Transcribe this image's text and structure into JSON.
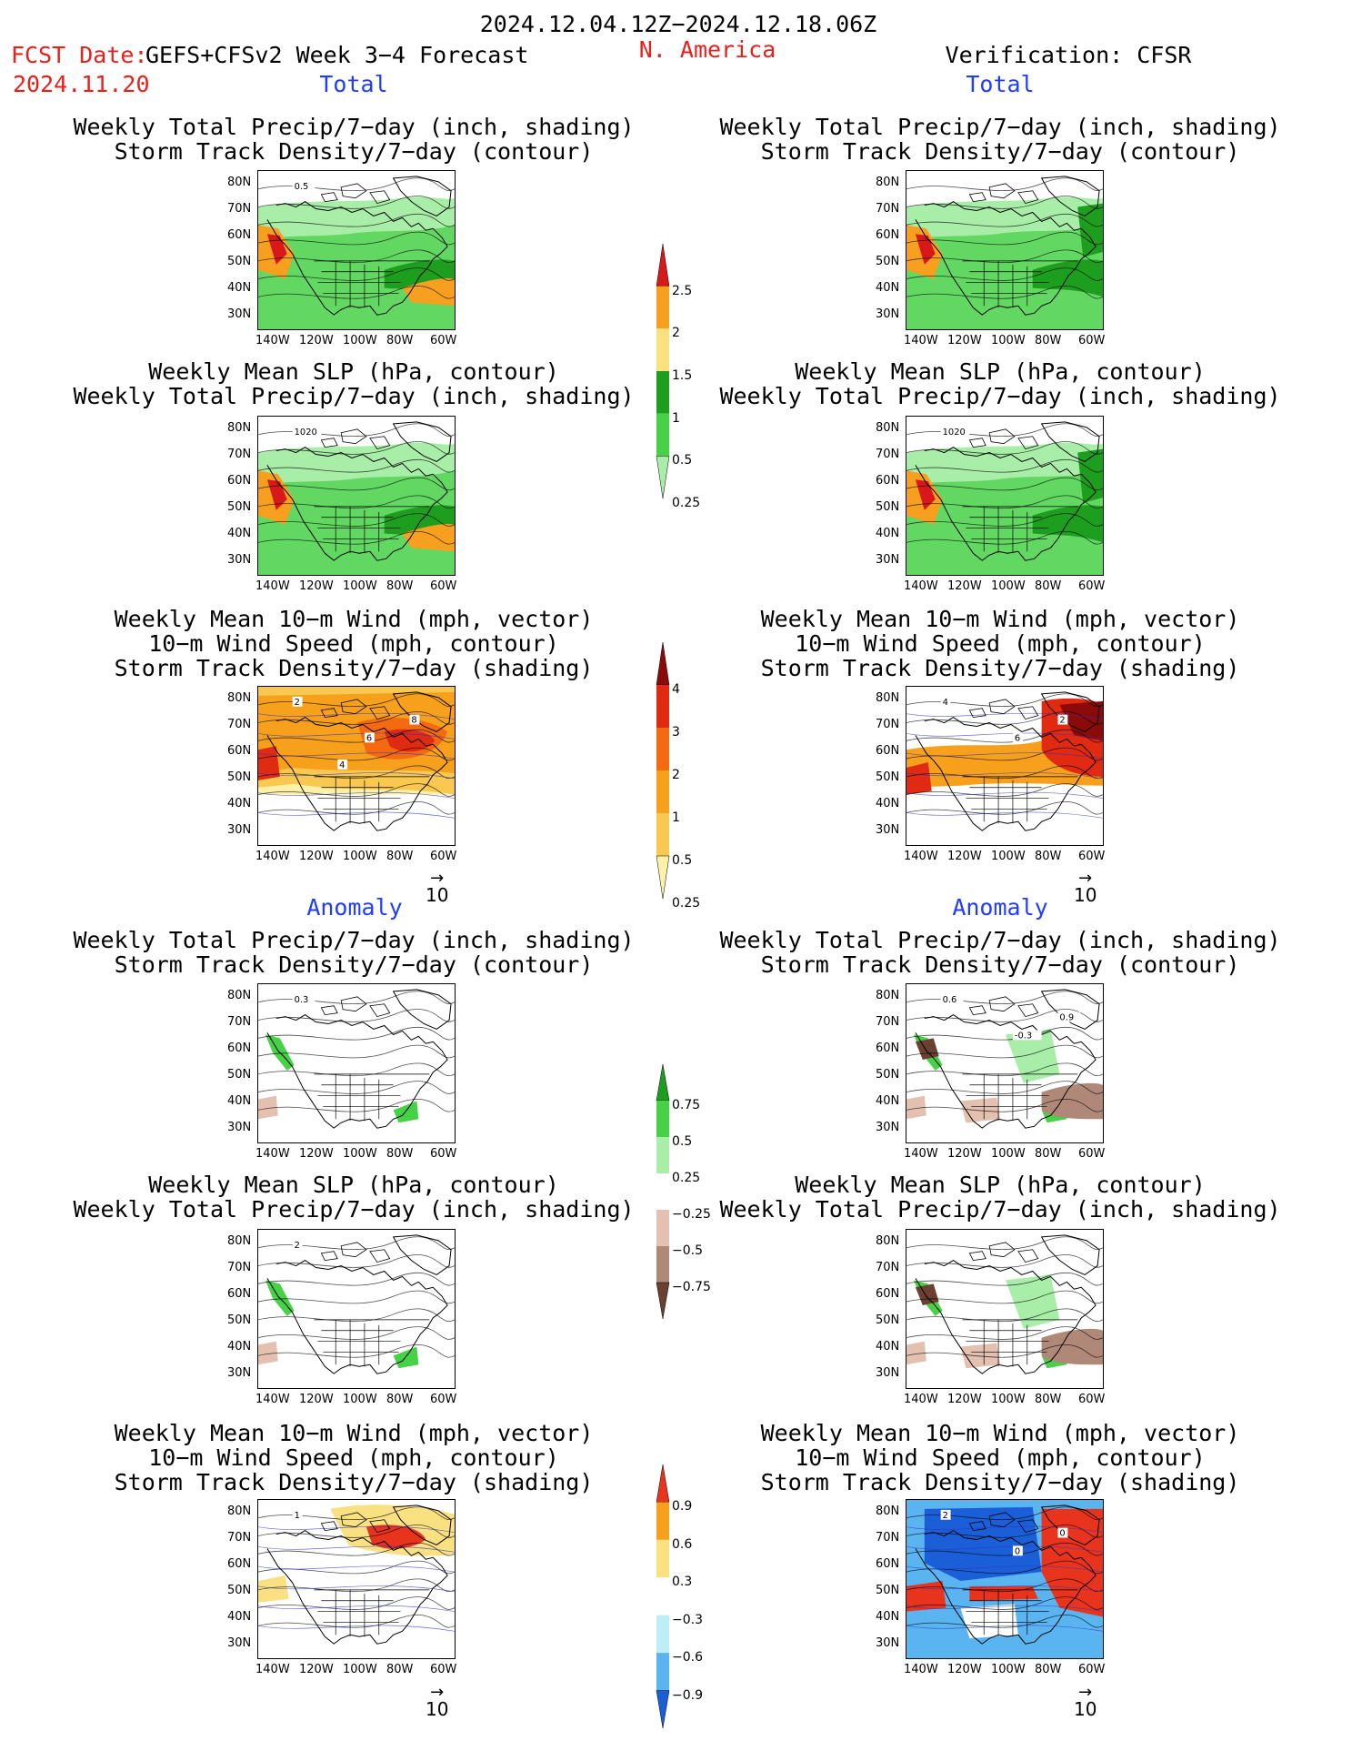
{
  "header": {
    "date_range": "2024.12.04.12Z−2024.12.18.06Z",
    "fcst_label": "FCST Date:",
    "fcst_model": "GEFS+CFSv2 Week 3−4 Forecast",
    "fcst_date": "2024.11.20",
    "region": "N. America",
    "verification": "Verification: CFSR"
  },
  "sections": {
    "total": "Total",
    "anomaly": "Anomaly"
  },
  "panel_titles": {
    "precip_track": [
      "Weekly Total Precip/7−day (inch, shading)",
      "Storm Track Density/7−day (contour)"
    ],
    "slp_precip": [
      "Weekly Mean SLP (hPa, contour)",
      "Weekly Total Precip/7−day (inch, shading)"
    ],
    "wind_track": [
      "Weekly Mean 10−m Wind (mph, vector)",
      "10−m Wind Speed (mph, contour)",
      "Storm Track Density/7−day (shading)"
    ]
  },
  "axes": {
    "lat_ticks": [
      "80N",
      "70N",
      "60N",
      "50N",
      "40N",
      "30N"
    ],
    "lon_ticks": [
      "140W",
      "120W",
      "100W",
      "80W",
      "60W"
    ]
  },
  "vector_ref": "10",
  "panels": [
    {
      "id": "fc-total-precip",
      "type": "precip_total",
      "labels": [
        "0.5"
      ]
    },
    {
      "id": "ob-total-precip",
      "type": "precip_total_obs",
      "labels": []
    },
    {
      "id": "fc-total-slp",
      "type": "precip_total",
      "labels": [
        "1020"
      ]
    },
    {
      "id": "ob-total-slp",
      "type": "precip_total_obs",
      "labels": [
        "1020"
      ]
    },
    {
      "id": "fc-total-wind",
      "type": "track_total",
      "labels": [
        "2",
        "6",
        "8",
        "4"
      ]
    },
    {
      "id": "ob-total-wind",
      "type": "track_total_obs",
      "labels": [
        "4",
        "6",
        "2"
      ]
    },
    {
      "id": "fc-anom-precip",
      "type": "precip_anom",
      "labels": [
        "0.3"
      ]
    },
    {
      "id": "ob-anom-precip",
      "type": "precip_anom_obs",
      "labels": [
        "0.6",
        "-0.3",
        "0.9"
      ]
    },
    {
      "id": "fc-anom-slp",
      "type": "precip_anom",
      "labels": [
        "2"
      ]
    },
    {
      "id": "ob-anom-slp",
      "type": "precip_anom_obs",
      "labels": []
    },
    {
      "id": "fc-anom-wind",
      "type": "track_anom",
      "labels": [
        "1"
      ]
    },
    {
      "id": "ob-anom-wind",
      "type": "track_anom_obs",
      "labels": [
        "2",
        "0",
        "0"
      ]
    }
  ],
  "colorbars": [
    {
      "id": "precip-total",
      "labels": [
        "2.5",
        "2",
        "1.5",
        "1",
        "0.5",
        "0.25"
      ],
      "colors": [
        "#d7191c",
        "#f7a020",
        "#f9e080",
        "#1e9e1e",
        "#47d147",
        "#a8eea8"
      ]
    },
    {
      "id": "track-total",
      "labels": [
        "4",
        "3",
        "2",
        "1",
        "0.5",
        "0.25"
      ],
      "colors": [
        "#8b0a0a",
        "#e02a12",
        "#f46a10",
        "#f7a01c",
        "#f9c850",
        "#fdf1a8"
      ]
    },
    {
      "id": "precip-anom",
      "labels": [
        "0.75",
        "0.5",
        "0.25",
        "−0.25",
        "−0.5",
        "−0.75"
      ],
      "colors": [
        "#1e9e1e",
        "#47d147",
        "#a8eea8",
        "#ffffff",
        "#e3c0b0",
        "#b08878",
        "#6b4030"
      ]
    },
    {
      "id": "track-anom",
      "labels": [
        "0.9",
        "0.6",
        "0.3",
        "−0.3",
        "−0.6",
        "−0.9"
      ],
      "colors": [
        "#e8341c",
        "#f7a01c",
        "#f9e080",
        "#ffffff",
        "#bdeef7",
        "#5ab4f0",
        "#1a5fd8"
      ]
    }
  ]
}
